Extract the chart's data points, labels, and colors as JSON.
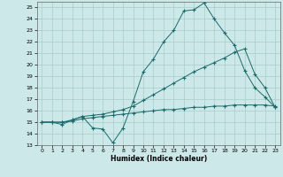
{
  "xlabel": "Humidex (Indice chaleur)",
  "xlim": [
    -0.5,
    23.5
  ],
  "ylim": [
    13,
    25.5
  ],
  "yticks": [
    13,
    14,
    15,
    16,
    17,
    18,
    19,
    20,
    21,
    22,
    23,
    24,
    25
  ],
  "xticks": [
    0,
    1,
    2,
    3,
    4,
    5,
    6,
    7,
    8,
    9,
    10,
    11,
    12,
    13,
    14,
    15,
    16,
    17,
    18,
    19,
    20,
    21,
    22,
    23
  ],
  "background_color": "#cce8e8",
  "grid_color": "#aacccc",
  "line_color": "#1a6b6b",
  "line1_y": [
    15.0,
    15.0,
    15.0,
    15.1,
    15.3,
    15.4,
    15.5,
    15.6,
    15.7,
    15.8,
    15.9,
    16.0,
    16.1,
    16.1,
    16.2,
    16.3,
    16.3,
    16.4,
    16.4,
    16.5,
    16.5,
    16.5,
    16.5,
    16.4
  ],
  "line2_y": [
    15.0,
    15.0,
    15.0,
    15.2,
    15.5,
    15.6,
    15.7,
    15.9,
    16.1,
    16.4,
    16.9,
    17.4,
    17.9,
    18.4,
    18.9,
    19.4,
    19.8,
    20.2,
    20.6,
    21.1,
    21.4,
    19.2,
    18.0,
    16.3
  ],
  "line3_y": [
    15.0,
    15.0,
    14.8,
    15.2,
    15.5,
    14.5,
    14.4,
    13.2,
    14.5,
    16.8,
    19.4,
    20.5,
    22.0,
    23.0,
    24.7,
    24.8,
    25.4,
    24.0,
    22.8,
    21.7,
    19.5,
    18.0,
    17.2,
    16.3
  ]
}
